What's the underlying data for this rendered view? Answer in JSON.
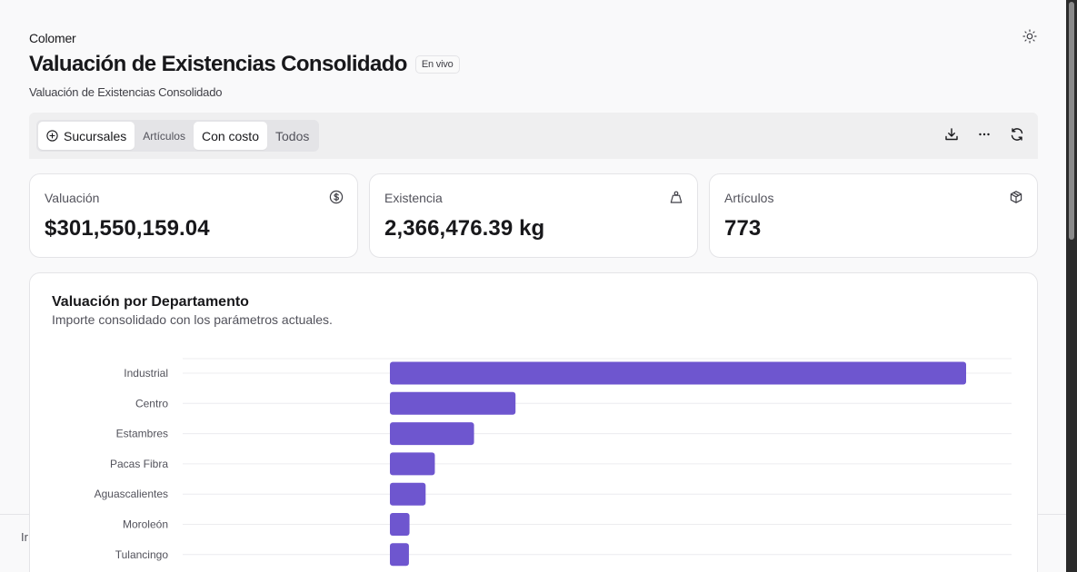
{
  "header": {
    "org_name": "Colomer",
    "title": "Valuación de Existencias Consolidado",
    "live_badge": "En vivo",
    "subtitle": "Valuación de Existencias Consolidado",
    "theme_icon": "sun-icon"
  },
  "toolbar": {
    "segments": [
      {
        "label": "Sucursales",
        "icon": "plus-circle-icon",
        "active": true
      },
      {
        "label": "Artículos",
        "active": false
      },
      {
        "label": "Con costo",
        "active": true
      },
      {
        "label": "Todos",
        "active": false
      }
    ],
    "actions": [
      "download-icon",
      "more-horizontal-icon",
      "refresh-icon"
    ]
  },
  "cards": [
    {
      "label": "Valuación",
      "value": "$301,550,159.04",
      "icon": "dollar-circle-icon"
    },
    {
      "label": "Existencia",
      "value": "2,366,476.39 kg",
      "icon": "weight-icon"
    },
    {
      "label": "Artículos",
      "value": "773",
      "icon": "box-icon"
    }
  ],
  "footer": {
    "text": "Ir"
  },
  "chart": {
    "title": "Valuación por Departamento",
    "subtitle": "Importe consolidado con los parámetros actuales."
  },
  "chart_data": {
    "type": "bar",
    "orientation": "horizontal",
    "title": "Valuación por Departamento",
    "categories": [
      "Industrial",
      "Centro",
      "Estambres",
      "Pacas Fibra",
      "Aguascalientes",
      "Moroleón",
      "Tulancingo"
    ],
    "values": [
      100,
      21.8,
      14.6,
      7.8,
      6.2,
      3.4,
      3.3
    ],
    "color": "#6e56cf",
    "grid": true
  }
}
